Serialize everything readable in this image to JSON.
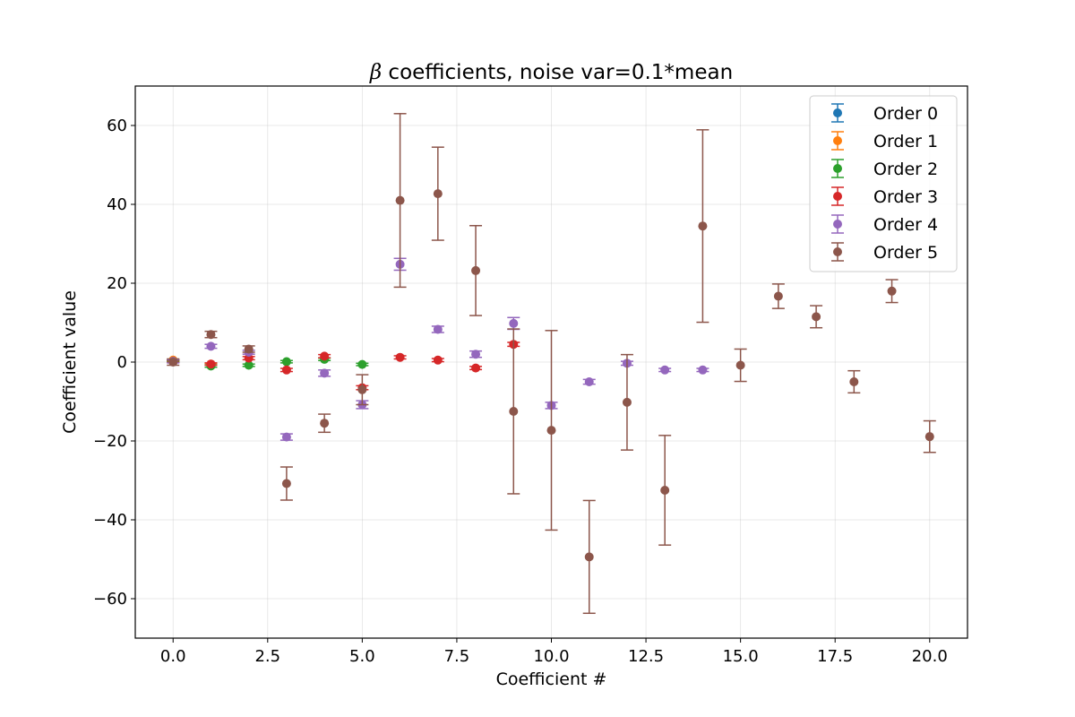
{
  "chart_data": {
    "type": "scatter",
    "title_symbol": "β",
    "title_rest": " coefficients, noise var=0.1*mean",
    "xlabel": "Coefficient #",
    "ylabel": "Coefficient value",
    "xlim": [
      -1.0,
      21.0
    ],
    "ylim": [
      -70,
      70
    ],
    "xticks": [
      0.0,
      2.5,
      5.0,
      7.5,
      10.0,
      12.5,
      15.0,
      17.5,
      20.0
    ],
    "xtick_labels": [
      "0.0",
      "2.5",
      "5.0",
      "7.5",
      "10.0",
      "12.5",
      "15.0",
      "17.5",
      "20.0"
    ],
    "yticks": [
      -60,
      -40,
      -20,
      0,
      20,
      40,
      60
    ],
    "ytick_labels": [
      "−60",
      "−40",
      "−20",
      "0",
      "20",
      "40",
      "60"
    ],
    "grid": true,
    "legend_position": "top-right",
    "series": [
      {
        "name": "Order 0",
        "color": "#1f77b4",
        "points": [
          {
            "x": 0,
            "y": 0.3,
            "err": 0.2
          }
        ]
      },
      {
        "name": "Order 1",
        "color": "#ff7f0e",
        "points": [
          {
            "x": 0,
            "y": 0.5,
            "err": 0.2
          },
          {
            "x": 1,
            "y": -0.5,
            "err": 0.2
          }
        ]
      },
      {
        "name": "Order 2",
        "color": "#2ca02c",
        "points": [
          {
            "x": 0,
            "y": 0.2,
            "err": 0.2
          },
          {
            "x": 1,
            "y": -1.0,
            "err": 0.3
          },
          {
            "x": 2,
            "y": -0.8,
            "err": 0.3
          },
          {
            "x": 3,
            "y": 0.1,
            "err": 0.3
          },
          {
            "x": 4,
            "y": 0.7,
            "err": 0.3
          },
          {
            "x": 5,
            "y": -0.6,
            "err": 0.3
          }
        ]
      },
      {
        "name": "Order 3",
        "color": "#d62728",
        "points": [
          {
            "x": 0,
            "y": 0.2,
            "err": 0.3
          },
          {
            "x": 1,
            "y": -0.5,
            "err": 0.3
          },
          {
            "x": 2,
            "y": 1.0,
            "err": 0.4
          },
          {
            "x": 3,
            "y": -2.0,
            "err": 0.4
          },
          {
            "x": 4,
            "y": 1.5,
            "err": 0.4
          },
          {
            "x": 5,
            "y": -6.5,
            "err": 0.5
          },
          {
            "x": 6,
            "y": 1.2,
            "err": 0.4
          },
          {
            "x": 7,
            "y": 0.5,
            "err": 0.4
          },
          {
            "x": 8,
            "y": -1.5,
            "err": 0.4
          },
          {
            "x": 9,
            "y": 4.5,
            "err": 0.5
          }
        ]
      },
      {
        "name": "Order 4",
        "color": "#9467bd",
        "points": [
          {
            "x": 0,
            "y": 0.2,
            "err": 0.4
          },
          {
            "x": 1,
            "y": 4.0,
            "err": 0.5
          },
          {
            "x": 2,
            "y": 2.5,
            "err": 0.5
          },
          {
            "x": 3,
            "y": -19.0,
            "err": 0.8
          },
          {
            "x": 4,
            "y": -2.8,
            "err": 0.8
          },
          {
            "x": 5,
            "y": -10.8,
            "err": 1.0
          },
          {
            "x": 6,
            "y": 24.8,
            "err": 1.5
          },
          {
            "x": 7,
            "y": 8.3,
            "err": 0.8
          },
          {
            "x": 8,
            "y": 2.0,
            "err": 0.8
          },
          {
            "x": 9,
            "y": 9.8,
            "err": 1.5
          },
          {
            "x": 10,
            "y": -11.0,
            "err": 0.8
          },
          {
            "x": 11,
            "y": -5.0,
            "err": 0.6
          },
          {
            "x": 12,
            "y": -0.3,
            "err": 0.5
          },
          {
            "x": 13,
            "y": -2.0,
            "err": 0.4
          },
          {
            "x": 14,
            "y": -2.0,
            "err": 0.4
          }
        ]
      },
      {
        "name": "Order 5",
        "color": "#8c564b",
        "points": [
          {
            "x": 0,
            "y": 0.0,
            "err": 0.8
          },
          {
            "x": 1,
            "y": 7.0,
            "err": 0.8
          },
          {
            "x": 2,
            "y": 3.3,
            "err": 0.8
          },
          {
            "x": 3,
            "y": -30.8,
            "err": 4.2
          },
          {
            "x": 4,
            "y": -15.5,
            "err": 2.3
          },
          {
            "x": 5,
            "y": -7.0,
            "err": 3.8
          },
          {
            "x": 6,
            "y": 41.0,
            "err": 22.0
          },
          {
            "x": 7,
            "y": 42.7,
            "err": 11.8
          },
          {
            "x": 8,
            "y": 23.2,
            "err": 11.4
          },
          {
            "x": 9,
            "y": -12.5,
            "err": 20.9
          },
          {
            "x": 10,
            "y": -17.3,
            "err": 25.3
          },
          {
            "x": 11,
            "y": -49.4,
            "err": 14.3
          },
          {
            "x": 12,
            "y": -10.2,
            "err": 12.1
          },
          {
            "x": 13,
            "y": -32.5,
            "err": 13.9
          },
          {
            "x": 14,
            "y": 34.5,
            "err": 24.4
          },
          {
            "x": 15,
            "y": -0.8,
            "err": 4.1
          },
          {
            "x": 16,
            "y": 16.7,
            "err": 3.1
          },
          {
            "x": 17,
            "y": 11.5,
            "err": 2.8
          },
          {
            "x": 18,
            "y": -5.0,
            "err": 2.8
          },
          {
            "x": 19,
            "y": 18.0,
            "err": 2.9
          },
          {
            "x": 20,
            "y": -18.9,
            "err": 4.0
          }
        ]
      }
    ]
  }
}
